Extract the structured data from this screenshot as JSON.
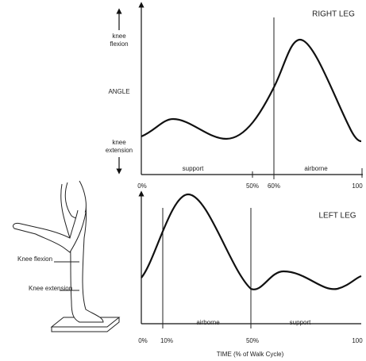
{
  "top": {
    "title": "RIGHT LEG",
    "flexion": [
      "knee",
      "flexion"
    ],
    "angle": "ANGLE",
    "extension": [
      "knee",
      "extension"
    ],
    "phases": [
      "support",
      "airborne"
    ],
    "ticks": [
      "0%",
      "50%",
      "60%",
      "100"
    ]
  },
  "bottom": {
    "title": "LEFT LEG",
    "phases": [
      "airborne",
      "support"
    ],
    "ticks": [
      "0%",
      "10%",
      "50%",
      "100"
    ],
    "x_label": "TIME (% of Walk Cycle)"
  },
  "figure": {
    "labels": [
      "Knee flexion",
      "Knee extension"
    ]
  }
}
